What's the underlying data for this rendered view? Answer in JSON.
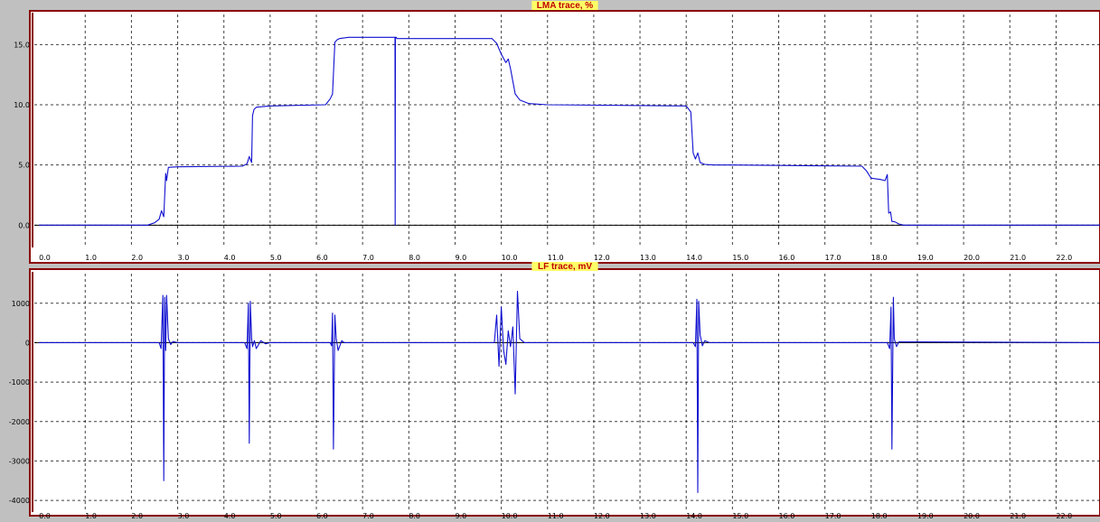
{
  "colors": {
    "window_bg": "#c0c0c0",
    "plot_bg": "#ffffff",
    "frame": "#8b0000",
    "title_bg": "#ffff66",
    "title_text": "#c00000",
    "trace": "#1010d0"
  },
  "chart_data": [
    {
      "type": "line",
      "title": "LMA trace, %",
      "xlabel": "",
      "ylabel": "",
      "xlim": [
        -0.1,
        22.95
      ],
      "ylim": [
        -1.7,
        17.5
      ],
      "grid": true,
      "x_ticks": [
        0,
        1,
        2,
        3,
        4,
        5,
        6,
        7,
        8,
        9,
        10,
        11,
        12,
        13,
        14,
        15,
        16,
        17,
        18,
        19,
        20,
        21,
        22
      ],
      "x_tick_labels": [
        "0.0",
        "1.0",
        "2.0",
        "3.0",
        "4.0",
        "5.0",
        "6.0",
        "7.0",
        "8.0",
        "9.0",
        "10.0",
        "11.0",
        "12.0",
        "13.0",
        "14.0",
        "15.0",
        "16.0",
        "17.0",
        "18.0",
        "19.0",
        "20.0",
        "21.0",
        "22.0"
      ],
      "y_ticks": [
        0,
        5,
        10,
        15
      ],
      "y_tick_labels": [
        "0.0",
        "5.0",
        "10.0",
        "15.0"
      ],
      "baseline": 0,
      "series": [
        {
          "x": [
            0,
            2.35,
            2.5,
            2.6,
            2.65,
            2.7,
            2.74,
            2.76,
            2.8,
            3.0,
            4.4,
            4.5,
            4.55,
            4.6,
            4.62,
            4.65,
            4.7,
            5.0,
            6.2,
            6.3,
            6.35,
            6.4,
            6.45,
            6.5,
            6.7,
            7.0,
            7.7,
            7.705,
            7.71,
            7.72,
            7.73,
            7.74,
            9.8,
            9.9,
            10.0,
            10.1,
            10.15,
            10.2,
            10.3,
            10.4,
            10.6,
            11.0,
            14.0,
            14.1,
            14.15,
            14.2,
            14.25,
            14.3,
            14.4,
            14.6,
            15.0,
            17.8,
            17.9,
            18.0,
            18.2,
            18.3,
            18.35,
            18.38,
            18.42,
            18.45,
            18.5,
            18.6,
            18.7,
            18.8,
            22.95
          ],
          "y": [
            0,
            0,
            0.2,
            0.5,
            1.2,
            0.7,
            4.3,
            3.7,
            4.8,
            4.85,
            4.9,
            5.1,
            5.7,
            5.2,
            9.1,
            9.6,
            9.8,
            9.9,
            10.0,
            10.5,
            10.9,
            15.2,
            15.4,
            15.5,
            15.6,
            15.6,
            15.6,
            0,
            15.6,
            15.6,
            15.6,
            15.5,
            15.5,
            15.1,
            14.2,
            13.5,
            13.8,
            13.0,
            10.9,
            10.4,
            10.1,
            10.0,
            9.9,
            9.4,
            6.0,
            5.5,
            6.0,
            5.2,
            5.05,
            5.0,
            5.0,
            4.9,
            4.5,
            3.9,
            3.8,
            3.7,
            4.2,
            1.0,
            1.1,
            0.3,
            0.3,
            0.1,
            0,
            0,
            0
          ]
        }
      ]
    },
    {
      "type": "line",
      "title": "LF trace, mV",
      "xlabel": "",
      "ylabel": "",
      "xlim": [
        -0.1,
        22.95
      ],
      "ylim": [
        -4250,
        1750
      ],
      "grid": true,
      "x_ticks": [
        0,
        1,
        2,
        3,
        4,
        5,
        6,
        7,
        8,
        9,
        10,
        11,
        12,
        13,
        14,
        15,
        16,
        17,
        18,
        19,
        20,
        21,
        22
      ],
      "x_tick_labels": [
        "0.0",
        "1.0",
        "2.0",
        "3.0",
        "4.0",
        "5.0",
        "6.0",
        "7.0",
        "8.0",
        "9.0",
        "10.0",
        "11.0",
        "12.0",
        "13.0",
        "14.0",
        "15.0",
        "16.0",
        "17.0",
        "18.0",
        "19.0",
        "20.0",
        "21.0",
        "22.0"
      ],
      "y_ticks": [
        -4000,
        -3000,
        -2000,
        -1000,
        0,
        1000
      ],
      "y_tick_labels": [
        "-4000",
        "-3000",
        "-2000",
        "-1000",
        "0",
        "1000"
      ],
      "baseline": 0,
      "series": [
        {
          "x": [
            0,
            2.6,
            2.64,
            2.68,
            2.7,
            2.72,
            2.74,
            2.76,
            2.8,
            2.85,
            2.9,
            3.0,
            4.45,
            4.5,
            4.53,
            4.55,
            4.57,
            4.6,
            4.62,
            4.66,
            4.7,
            4.8,
            4.9,
            5.0,
            6.3,
            6.33,
            6.35,
            6.37,
            6.4,
            6.43,
            6.47,
            6.55,
            6.6,
            9.85,
            9.9,
            9.95,
            10.0,
            10.05,
            10.1,
            10.15,
            10.2,
            10.25,
            10.3,
            10.35,
            10.4,
            10.5,
            14.15,
            14.2,
            14.23,
            14.25,
            14.27,
            14.3,
            14.35,
            14.4,
            14.5,
            18.35,
            18.4,
            18.43,
            18.45,
            18.48,
            18.5,
            18.55,
            18.6,
            22.95
          ],
          "y": [
            0,
            0,
            -150,
            1200,
            -3500,
            1150,
            -200,
            1200,
            100,
            -50,
            30,
            0,
            0,
            -150,
            1000,
            -2550,
            1050,
            100,
            -100,
            50,
            -150,
            50,
            -30,
            0,
            0,
            -80,
            750,
            -2700,
            700,
            100,
            -200,
            50,
            0,
            0,
            700,
            -600,
            900,
            -200,
            -550,
            300,
            -100,
            400,
            -1300,
            1300,
            100,
            0,
            0,
            -100,
            1100,
            -3800,
            1050,
            200,
            -80,
            50,
            0,
            0,
            -150,
            900,
            -2700,
            1150,
            100,
            -100,
            20,
            0
          ]
        }
      ]
    }
  ]
}
